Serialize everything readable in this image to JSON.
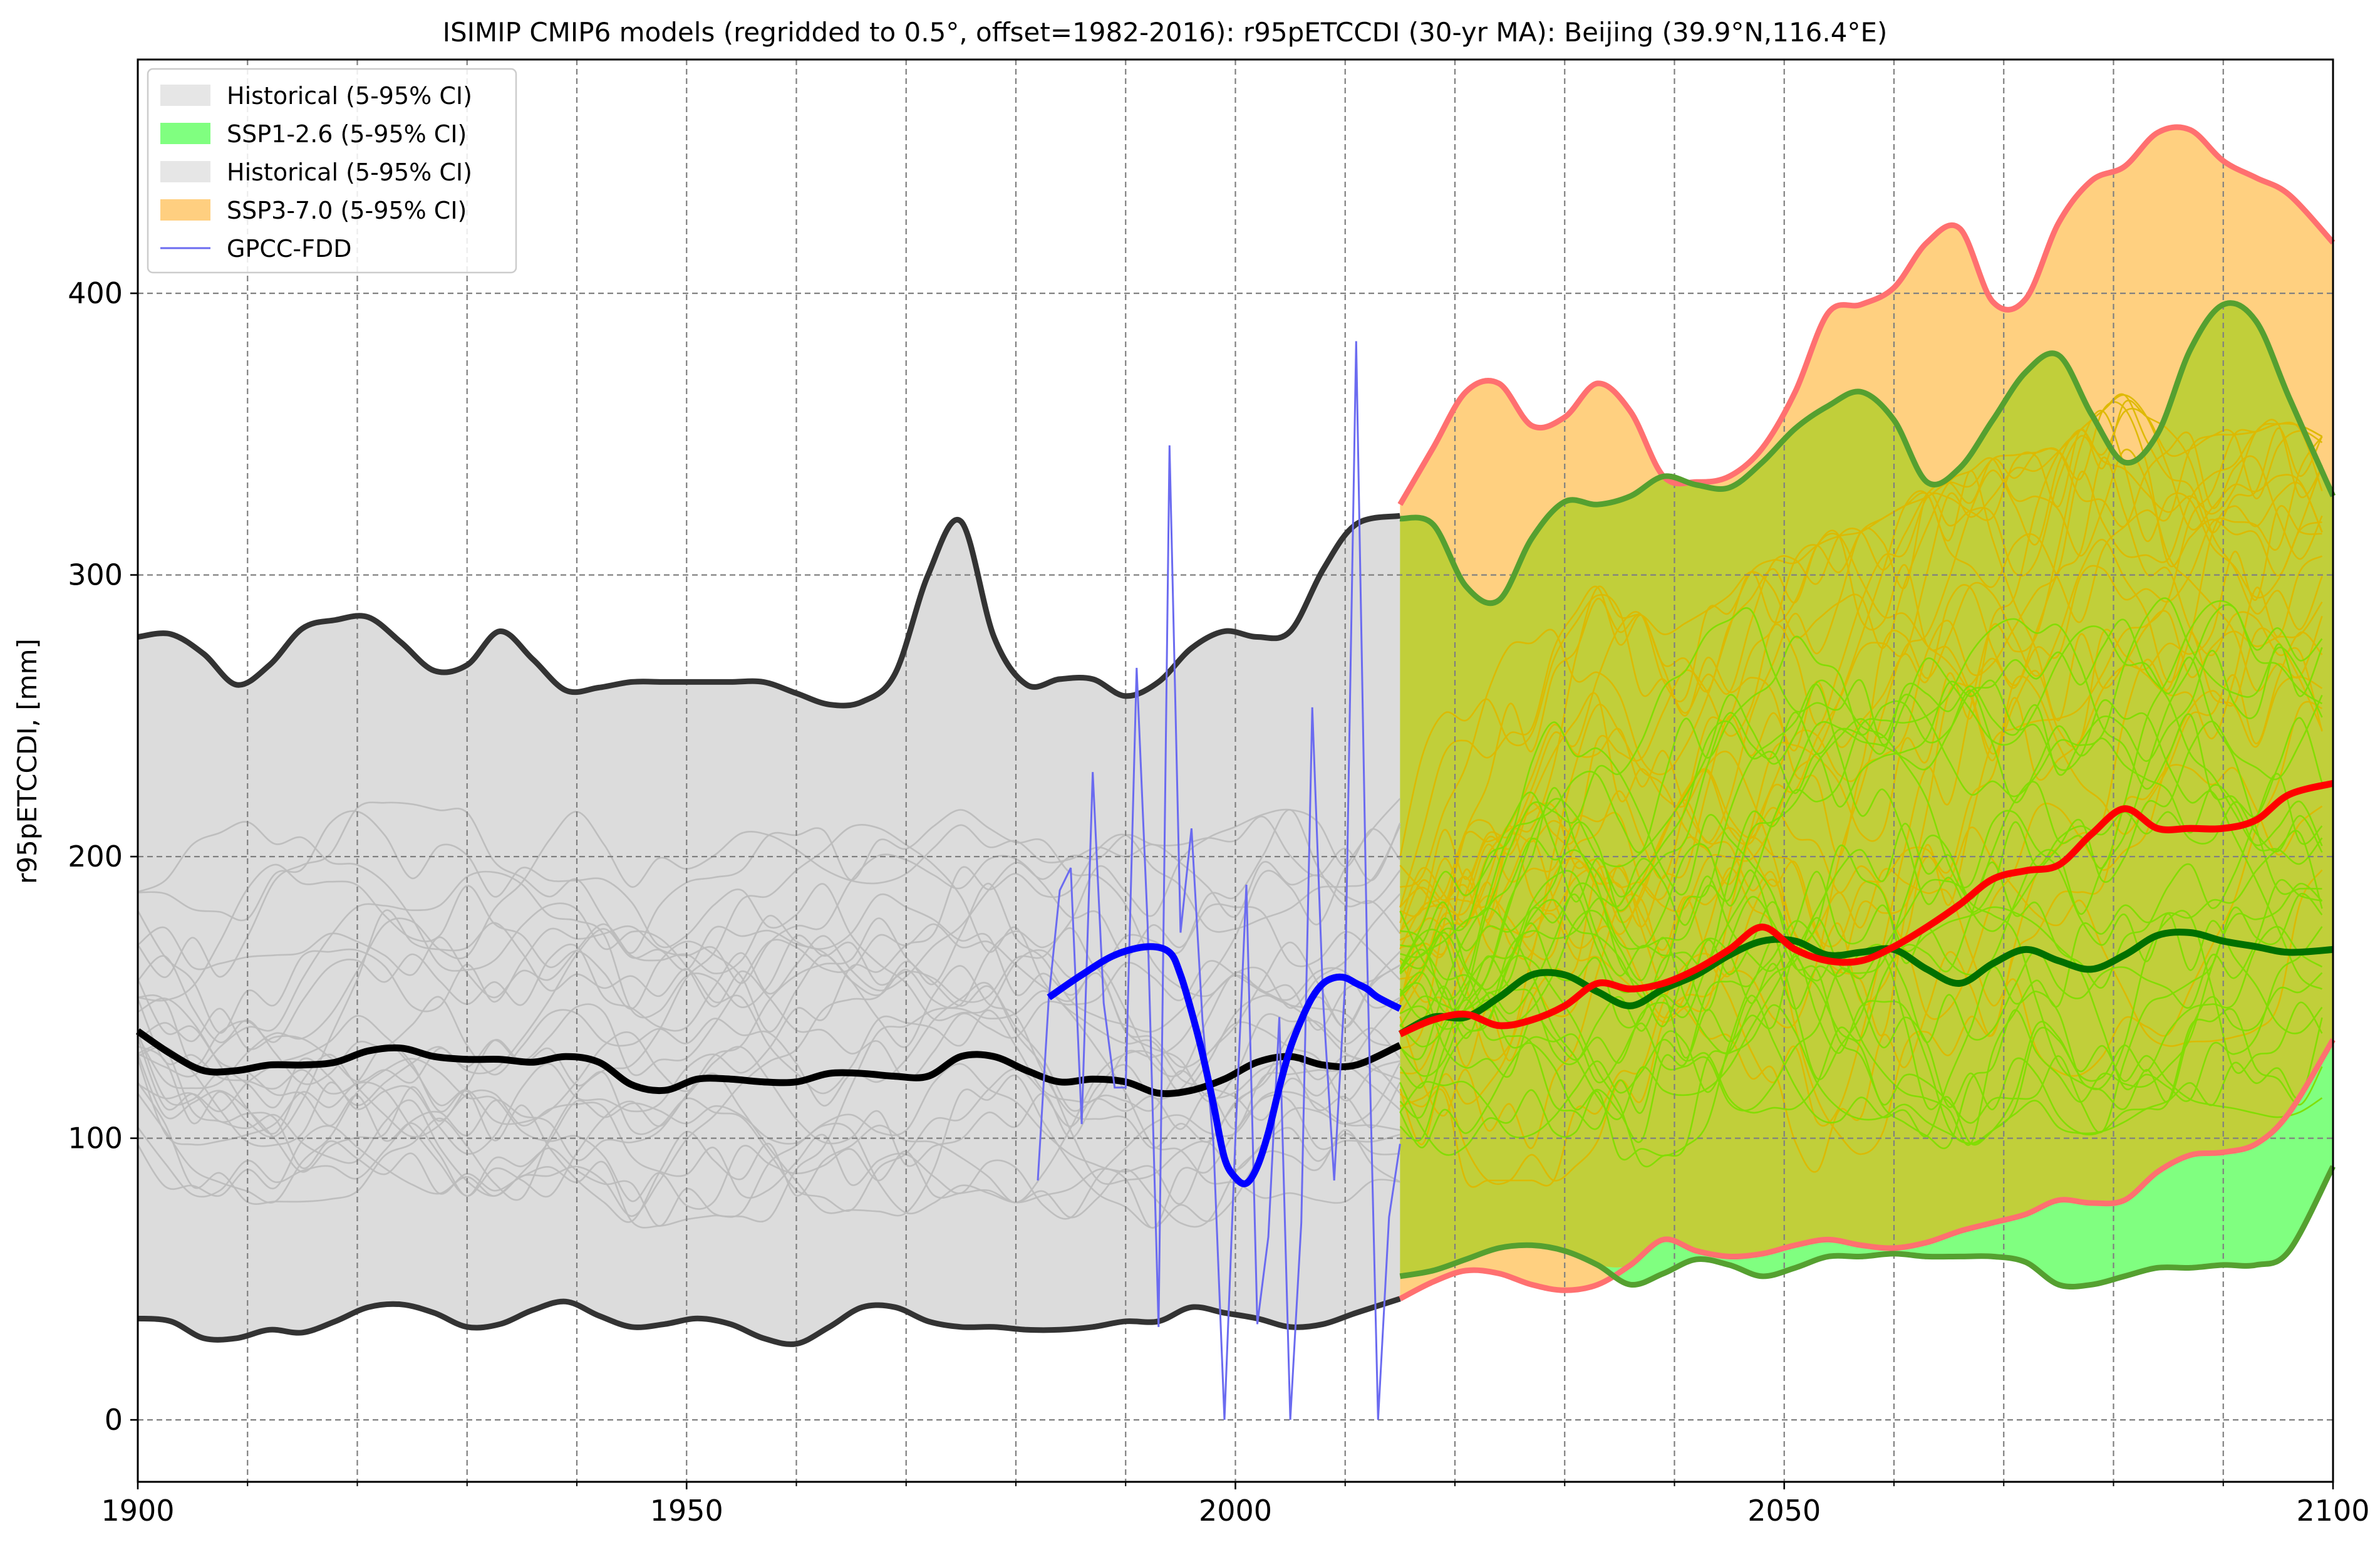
{
  "chart_data": {
    "type": "line",
    "title": "ISIMIP CMIP6 models (regridded to 0.5°, offset=1982-2016): r95pETCCDI (30-yr MA): Beijing (39.9°N,116.4°E)",
    "xlabel": "",
    "ylabel": "r95pETCCDI, [mm]",
    "xlim": [
      1900,
      2100
    ],
    "ylim": [
      -22,
      483
    ],
    "x_ticks": [
      1900,
      1950,
      2000,
      2050,
      2100
    ],
    "y_ticks": [
      0,
      100,
      200,
      300,
      400
    ],
    "grid": true,
    "legend_position": "top-left",
    "legend": [
      {
        "label": "Historical (5-95% CI)",
        "kind": "patch",
        "color": "#e6e6e6"
      },
      {
        "label": "SSP1-2.6 (5-95% CI)",
        "kind": "patch",
        "color": "#80ff80"
      },
      {
        "label": "Historical (5-95% CI)",
        "kind": "patch",
        "color": "#e6e6e6"
      },
      {
        "label": "SSP3-7.0 (5-95% CI)",
        "kind": "patch",
        "color": "#ffcf80"
      },
      {
        "label": "GPCC-FDD",
        "kind": "line",
        "color": "#6b6bf0"
      }
    ],
    "bands": [
      {
        "name": "Historical (5-95% CI)",
        "color": "#dcdcdc",
        "edge_color": "#333333",
        "x": [
          1900,
          1903,
          1906,
          1909,
          1912,
          1915,
          1918,
          1921,
          1924,
          1927,
          1930,
          1933,
          1936,
          1939,
          1942,
          1945,
          1948,
          1951,
          1954,
          1957,
          1960,
          1963,
          1966,
          1969,
          1972,
          1975,
          1978,
          1981,
          1984,
          1987,
          1990,
          1993,
          1996,
          1999,
          2002,
          2005,
          2008,
          2011,
          2015
        ],
        "upper": [
          278,
          279,
          272,
          261,
          268,
          281,
          284,
          285,
          276,
          266,
          268,
          280,
          270,
          259,
          260,
          262,
          262,
          262,
          262,
          262,
          258,
          254,
          255,
          265,
          300,
          319,
          278,
          261,
          263,
          263,
          257,
          262,
          274,
          280,
          278,
          280,
          302,
          318,
          321
        ],
        "lower": [
          36,
          35,
          29,
          29,
          32,
          31,
          35,
          40,
          41,
          38,
          33,
          34,
          39,
          42,
          37,
          33,
          34,
          36,
          34,
          29,
          27,
          33,
          40,
          40,
          35,
          33,
          33,
          32,
          32,
          33,
          35,
          35,
          40,
          38,
          36,
          33,
          34,
          38,
          43
        ]
      },
      {
        "name": "SSP3-7.0 (5-95% CI)",
        "color": "#ffd080",
        "edge_color": "#ff7070",
        "x": [
          2015,
          2018,
          2021,
          2024,
          2027,
          2030,
          2033,
          2036,
          2039,
          2042,
          2045,
          2048,
          2051,
          2054,
          2057,
          2060,
          2063,
          2066,
          2069,
          2072,
          2075,
          2078,
          2081,
          2084,
          2087,
          2090,
          2093,
          2096,
          2100
        ],
        "upper": [
          325,
          345,
          365,
          368,
          353,
          356,
          368,
          358,
          335,
          333,
          335,
          345,
          365,
          393,
          396,
          402,
          418,
          423,
          397,
          398,
          425,
          440,
          445,
          457,
          458,
          447,
          441,
          435,
          418
        ],
        "lower": [
          43,
          49,
          53,
          52,
          48,
          46,
          48,
          55,
          64,
          60,
          58,
          59,
          62,
          64,
          62,
          61,
          63,
          67,
          70,
          73,
          78,
          77,
          78,
          88,
          94,
          95,
          98,
          109,
          135
        ]
      },
      {
        "name": "SSP1-2.6 (5-95% CI)",
        "color": "#80ff80",
        "edge_color": "#55a030",
        "x": [
          2015,
          2018,
          2021,
          2024,
          2027,
          2030,
          2033,
          2036,
          2039,
          2042,
          2045,
          2048,
          2051,
          2054,
          2057,
          2060,
          2063,
          2066,
          2069,
          2072,
          2075,
          2078,
          2081,
          2084,
          2087,
          2090,
          2093,
          2096,
          2100
        ],
        "upper": [
          320,
          318,
          296,
          291,
          313,
          326,
          325,
          328,
          335,
          332,
          331,
          340,
          352,
          360,
          365,
          355,
          333,
          338,
          355,
          372,
          378,
          357,
          340,
          350,
          380,
          396,
          390,
          363,
          328
        ],
        "lower": [
          51,
          53,
          57,
          61,
          62,
          60,
          55,
          48,
          52,
          57,
          55,
          51,
          54,
          58,
          58,
          59,
          58,
          58,
          58,
          56,
          48,
          48,
          51,
          54,
          54,
          55,
          55,
          60,
          90
        ]
      }
    ],
    "overlap_color": "#c1cf3a",
    "series": [
      {
        "name": "Historical",
        "color": "#000000",
        "x": [
          1900,
          1903,
          1906,
          1909,
          1912,
          1915,
          1918,
          1921,
          1924,
          1927,
          1930,
          1933,
          1936,
          1939,
          1942,
          1945,
          1948,
          1951,
          1954,
          1957,
          1960,
          1963,
          1966,
          1969,
          1972,
          1975,
          1978,
          1981,
          1984,
          1987,
          1990,
          1993,
          1996,
          1999,
          2002,
          2005,
          2008,
          2011,
          2015
        ],
        "values": [
          138,
          130,
          124,
          124,
          126,
          126,
          127,
          131,
          132,
          129,
          128,
          128,
          127,
          129,
          127,
          119,
          117,
          121,
          121,
          120,
          120,
          123,
          123,
          122,
          122,
          129,
          129,
          124,
          120,
          121,
          120,
          116,
          117,
          121,
          127,
          129,
          126,
          126,
          133
        ]
      },
      {
        "name": "SSP1-2.6",
        "color": "#007000",
        "x": [
          2015,
          2018,
          2021,
          2024,
          2027,
          2030,
          2033,
          2036,
          2039,
          2042,
          2045,
          2048,
          2051,
          2054,
          2057,
          2060,
          2063,
          2066,
          2069,
          2072,
          2075,
          2078,
          2081,
          2084,
          2087,
          2090,
          2093,
          2096,
          2100
        ],
        "values": [
          137,
          143,
          143,
          150,
          158,
          158,
          152,
          147,
          153,
          158,
          165,
          170,
          170,
          165,
          166,
          167,
          160,
          155,
          162,
          167,
          163,
          160,
          165,
          172,
          173,
          170,
          168,
          166,
          167
        ]
      },
      {
        "name": "SSP3-7.0",
        "color": "#ff0000",
        "x": [
          2015,
          2018,
          2021,
          2024,
          2027,
          2030,
          2033,
          2036,
          2039,
          2042,
          2045,
          2048,
          2051,
          2054,
          2057,
          2060,
          2063,
          2066,
          2069,
          2072,
          2075,
          2078,
          2081,
          2084,
          2087,
          2090,
          2093,
          2096,
          2100
        ],
        "values": [
          137,
          142,
          144,
          140,
          142,
          147,
          155,
          153,
          155,
          160,
          167,
          175,
          167,
          163,
          163,
          168,
          175,
          183,
          192,
          195,
          197,
          208,
          217,
          210,
          210,
          210,
          213,
          222,
          226
        ]
      },
      {
        "name": "GPCC-FDD",
        "color": "#6b6bf0",
        "x": [
          1982,
          1983,
          1984,
          1985,
          1986,
          1987,
          1988,
          1989,
          1990,
          1991,
          1992,
          1993,
          1994,
          1995,
          1996,
          1997,
          1998,
          1999,
          2000,
          2001,
          2002,
          2003,
          2004,
          2005,
          2006,
          2007,
          2008,
          2009,
          2010,
          2011,
          2012,
          2013,
          2014,
          2015
        ],
        "values": [
          85,
          150,
          188,
          196,
          105,
          230,
          148,
          118,
          118,
          267,
          176,
          33,
          346,
          173,
          210,
          142,
          98,
          0,
          100,
          190,
          34,
          65,
          143,
          0,
          70,
          253,
          148,
          85,
          156,
          383,
          165,
          0,
          72,
          98
        ]
      },
      {
        "name": "GPCC-FDD (30-yr MA)",
        "color": "#0000ff",
        "x": [
          1983,
          1986,
          1989,
          1992,
          1994,
          1995,
          1996,
          1997,
          1998,
          1999,
          2000,
          2001,
          2002,
          2003,
          2004,
          2005,
          2006,
          2007,
          2008,
          2009,
          2010,
          2011,
          2012,
          2013,
          2015
        ],
        "values": [
          150,
          158,
          165,
          168,
          166,
          158,
          145,
          130,
          112,
          93,
          86,
          84,
          90,
          102,
          118,
          132,
          142,
          150,
          155,
          157,
          157,
          155,
          153,
          150,
          146
        ]
      }
    ],
    "members": [
      {
        "period": "historical",
        "count": 26,
        "color": "#bcbcbc"
      },
      {
        "period": "ssp126",
        "count": 24,
        "color": "#80dd00"
      },
      {
        "period": "ssp370",
        "count": 24,
        "color": "#ddb800"
      }
    ]
  }
}
